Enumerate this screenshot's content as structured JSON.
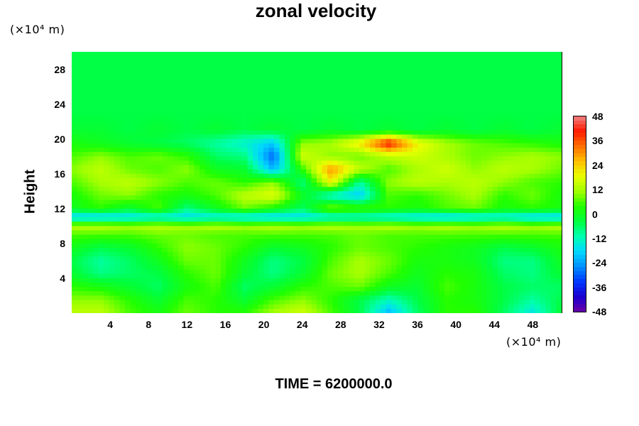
{
  "chart_data": {
    "type": "heatmap",
    "title": "zonal velocity",
    "ylabel": "Height",
    "x_unit_label": "(×10⁴ m)",
    "y_unit_label": "(×10⁴ m)",
    "footer": "TIME = 6200000.0",
    "xlim": [
      0,
      51
    ],
    "ylim": [
      0,
      30
    ],
    "x_ticks": [
      "4",
      "8",
      "12",
      "16",
      "20",
      "24",
      "28",
      "32",
      "36",
      "40",
      "44",
      "48"
    ],
    "y_ticks": [
      "4",
      "8",
      "12",
      "16",
      "20",
      "24",
      "28"
    ],
    "colorbar": {
      "range": [
        -48,
        48
      ],
      "tick_labels": [
        "48",
        "36",
        "24",
        "12",
        "0",
        "-12",
        "-24",
        "-36",
        "-48"
      ],
      "colors": [
        "#6a00a8",
        "#1a00d0",
        "#0038ff",
        "#0090ff",
        "#00d8ff",
        "#00ffb0",
        "#00ff40",
        "#20ff00",
        "#a0ff00",
        "#e8ff00",
        "#ffc000",
        "#ff7000",
        "#ff1a00",
        "#f08080"
      ]
    },
    "field_samples": {
      "x": [
        0,
        3,
        6,
        9,
        12,
        15,
        18,
        21,
        24,
        27,
        30,
        33,
        36,
        39,
        42,
        45,
        48,
        51
      ],
      "y": [
        0,
        1.5,
        3,
        4.5,
        6,
        7.5,
        9,
        10,
        11,
        12,
        13.5,
        15,
        16.5,
        18,
        19.5,
        21,
        23,
        25,
        27,
        29,
        30
      ],
      "values": [
        [
          14,
          14,
          6,
          2,
          8,
          4,
          4,
          12,
          16,
          6,
          -4,
          -22,
          -6,
          4,
          4,
          -6,
          -16,
          -2
        ],
        [
          10,
          10,
          4,
          -2,
          6,
          4,
          -2,
          6,
          10,
          4,
          -4,
          -12,
          -4,
          4,
          2,
          -4,
          -10,
          -4
        ],
        [
          4,
          2,
          -2,
          -6,
          2,
          6,
          -6,
          -2,
          4,
          6,
          8,
          0,
          -2,
          6,
          2,
          -4,
          -6,
          -6
        ],
        [
          -2,
          -8,
          -6,
          -4,
          4,
          8,
          -2,
          -8,
          -2,
          8,
          12,
          6,
          0,
          4,
          2,
          -6,
          -8,
          -2
        ],
        [
          -4,
          -10,
          -6,
          0,
          8,
          8,
          0,
          -8,
          -4,
          6,
          12,
          8,
          2,
          2,
          0,
          -8,
          -8,
          0
        ],
        [
          0,
          -4,
          -2,
          4,
          10,
          8,
          4,
          -2,
          0,
          4,
          8,
          6,
          4,
          2,
          0,
          -4,
          -2,
          2
        ],
        [
          6,
          6,
          6,
          8,
          8,
          6,
          6,
          6,
          6,
          6,
          8,
          6,
          6,
          6,
          6,
          6,
          6,
          6
        ],
        [
          14,
          14,
          12,
          14,
          12,
          14,
          12,
          14,
          12,
          14,
          12,
          14,
          12,
          14,
          12,
          14,
          12,
          14
        ],
        [
          -20,
          -20,
          -18,
          -16,
          -18,
          -16,
          -18,
          -20,
          -18,
          -16,
          -14,
          -16,
          -18,
          -20,
          -18,
          -16,
          -20,
          -20
        ],
        [
          0,
          4,
          -2,
          6,
          -8,
          0,
          8,
          2,
          -6,
          10,
          6,
          4,
          2,
          6,
          8,
          2,
          4,
          2
        ],
        [
          2,
          8,
          10,
          4,
          2,
          6,
          14,
          18,
          0,
          -14,
          -20,
          6,
          4,
          8,
          12,
          4,
          8,
          2
        ],
        [
          6,
          12,
          14,
          10,
          6,
          8,
          4,
          10,
          -8,
          20,
          -10,
          10,
          14,
          12,
          14,
          10,
          6,
          4
        ],
        [
          10,
          14,
          8,
          6,
          10,
          0,
          -2,
          -22,
          4,
          30,
          14,
          6,
          12,
          16,
          10,
          14,
          12,
          8
        ],
        [
          6,
          10,
          6,
          8,
          4,
          -6,
          -8,
          -30,
          16,
          10,
          8,
          14,
          16,
          12,
          8,
          10,
          12,
          10
        ],
        [
          2,
          0,
          -2,
          -4,
          -6,
          -10,
          -14,
          -20,
          10,
          12,
          22,
          42,
          20,
          12,
          8,
          6,
          4,
          2
        ],
        [
          -2,
          -2,
          -4,
          -2,
          -4,
          -2,
          -4,
          -2,
          -4,
          -2,
          -4,
          -2,
          -4,
          -2,
          -4,
          -2,
          -4,
          -2
        ],
        [
          -4,
          -4,
          -4,
          -4,
          -4,
          -4,
          -4,
          -4,
          -4,
          -4,
          -4,
          -4,
          -4,
          -4,
          -4,
          -4,
          -4,
          -4
        ],
        [
          -4,
          -4,
          -4,
          -4,
          -4,
          -4,
          -4,
          -4,
          -4,
          -4,
          -4,
          -4,
          -4,
          -4,
          -4,
          -4,
          -4,
          -4
        ],
        [
          -4,
          -4,
          -4,
          -4,
          -4,
          -4,
          -4,
          -4,
          -4,
          -4,
          -4,
          -4,
          -4,
          -4,
          -4,
          -4,
          -4,
          -4
        ],
        [
          -4,
          -4,
          -4,
          -4,
          -4,
          -4,
          -4,
          -4,
          -4,
          -4,
          -4,
          -4,
          -4,
          -4,
          -4,
          -4,
          -4,
          -4
        ],
        [
          -4,
          -4,
          -4,
          -4,
          -4,
          -4,
          -4,
          -4,
          -4,
          -4,
          -4,
          -4,
          -4,
          -4,
          -4,
          -4,
          -4,
          -4
        ]
      ]
    }
  }
}
